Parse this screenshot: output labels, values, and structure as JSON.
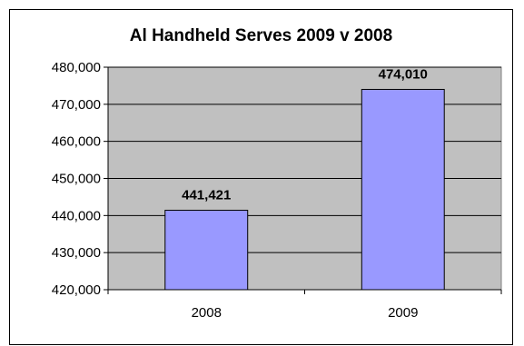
{
  "chart_data": {
    "type": "bar",
    "title": "Al Handheld Serves 2009 v 2008",
    "categories": [
      "2008",
      "2009"
    ],
    "values": [
      441421,
      474010
    ],
    "data_labels": [
      "441,421",
      "474,010"
    ],
    "ylim": [
      420000,
      480000
    ],
    "yticks": [
      420000,
      430000,
      440000,
      450000,
      460000,
      470000,
      480000
    ],
    "ytick_labels": [
      "420,000",
      "430,000",
      "440,000",
      "450,000",
      "460,000",
      "470,000",
      "480,000"
    ],
    "xlabel": "",
    "ylabel": "",
    "grid": true,
    "legend": false,
    "colors": {
      "bar_fill": "#9999ff",
      "bar_stroke": "#000000",
      "plot_background": "#c0c0c0",
      "gridline": "#000000"
    }
  }
}
